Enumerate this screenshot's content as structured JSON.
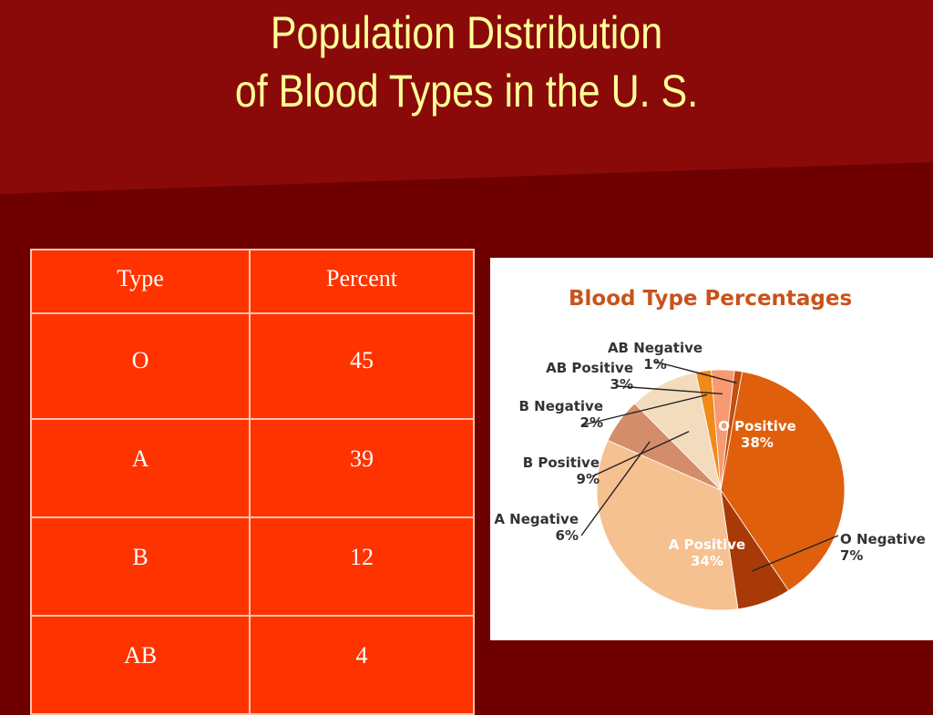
{
  "slide": {
    "title_line1": "Population Distribution",
    "title_line2": "of Blood Types in the U. S."
  },
  "table": {
    "headers": [
      "Type",
      "Percent"
    ],
    "rows": [
      {
        "type": "O",
        "percent": "45"
      },
      {
        "type": "A",
        "percent": "39"
      },
      {
        "type": "B",
        "percent": "12"
      },
      {
        "type": "AB",
        "percent": "4"
      }
    ]
  },
  "chart_data": {
    "type": "pie",
    "title": "Blood Type Percentages",
    "slices": [
      {
        "label": "O Positive",
        "value": 38,
        "pct": "38%",
        "color": "#df5f0d"
      },
      {
        "label": "O Negative",
        "value": 7,
        "pct": "7%",
        "color": "#a83a08"
      },
      {
        "label": "A Positive",
        "value": 34,
        "pct": "34%",
        "color": "#f6c191"
      },
      {
        "label": "A Negative",
        "value": 6,
        "pct": "6%",
        "color": "#d48d6b"
      },
      {
        "label": "B Positive",
        "value": 9,
        "pct": "9%",
        "color": "#f3dcbd"
      },
      {
        "label": "B Negative",
        "value": 2,
        "pct": "2%",
        "color": "#f08a1a"
      },
      {
        "label": "AB Positive",
        "value": 3,
        "pct": "3%",
        "color": "#f79a72"
      },
      {
        "label": "AB Negative",
        "value": 1,
        "pct": "1%",
        "color": "#c24f12"
      }
    ]
  },
  "colors": {
    "background": "#6e0000",
    "title_text": "#ffff99",
    "table_fill": "#ff3300"
  }
}
